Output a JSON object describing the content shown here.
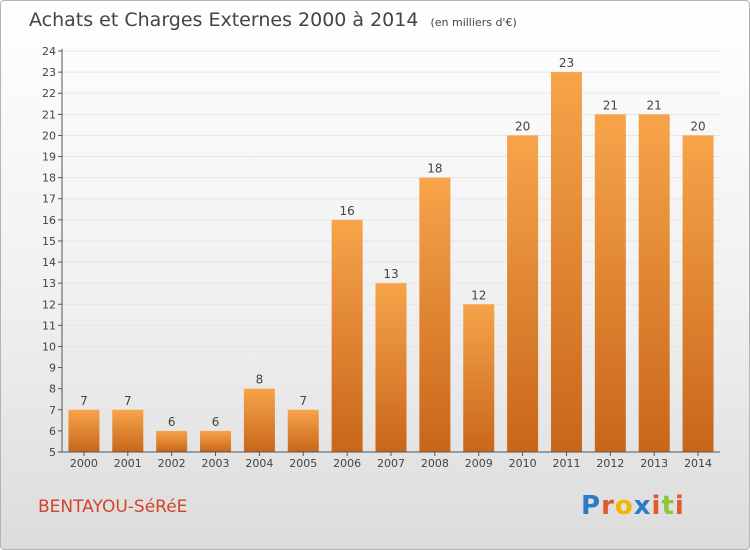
{
  "header": {
    "title": "Achats et Charges Externes 2000 à 2014",
    "unit": "(en milliers d'€)"
  },
  "footer": {
    "town": "BENTAYOU-SéRéE",
    "brand": "Proxiti"
  },
  "colors": {
    "bar_light": "#f7a44a",
    "bar_dark": "#c8661a",
    "axis": "#555555",
    "grid": "#e6e6e6"
  },
  "chart_data": {
    "type": "bar",
    "title": "Achats et Charges Externes 2000 à 2014",
    "subtitle": "(en milliers d'€)",
    "xlabel": "",
    "ylabel": "",
    "categories": [
      "2000",
      "2001",
      "2002",
      "2003",
      "2004",
      "2005",
      "2006",
      "2007",
      "2008",
      "2009",
      "2010",
      "2011",
      "2012",
      "2013",
      "2014"
    ],
    "values": [
      7,
      7,
      6,
      6,
      8,
      7,
      16,
      13,
      18,
      12,
      20,
      23,
      21,
      21,
      20
    ],
    "ylim": [
      5,
      24
    ],
    "yticks": [
      5,
      6,
      7,
      8,
      9,
      10,
      11,
      12,
      13,
      14,
      15,
      16,
      17,
      18,
      19,
      20,
      21,
      22,
      23,
      24
    ],
    "grid": true
  }
}
